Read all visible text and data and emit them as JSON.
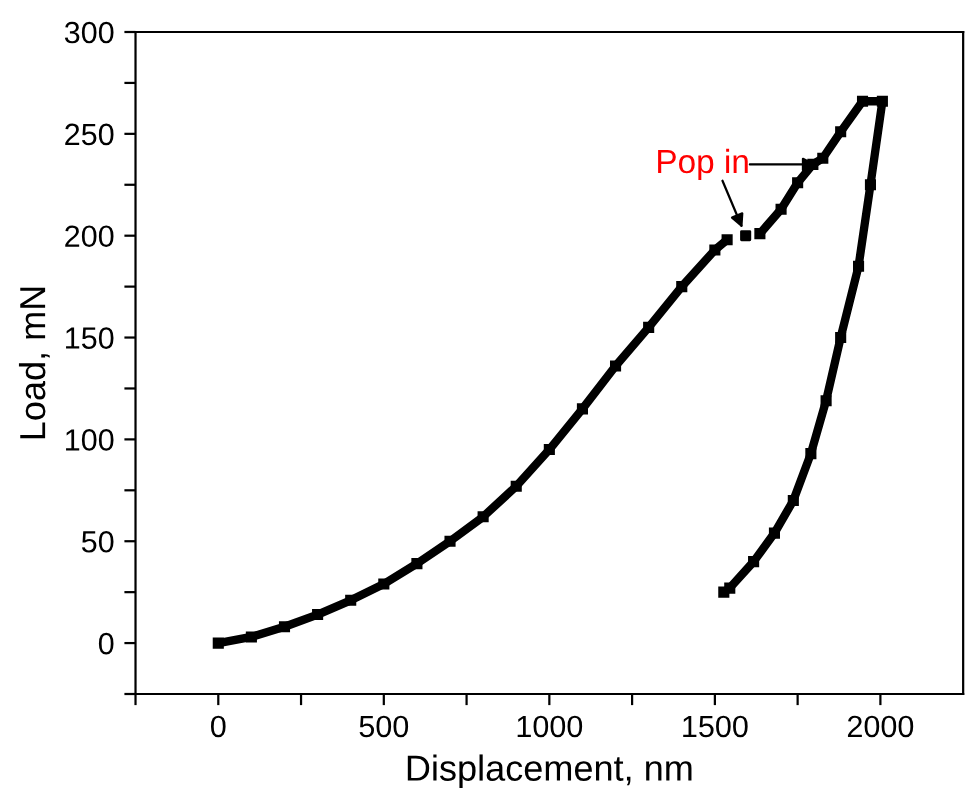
{
  "chart_data": {
    "type": "line",
    "xlabel": "Displacement, nm",
    "ylabel": "Load, mN",
    "series": [
      {
        "color": "#000000",
        "x": [
          0,
          100,
          200,
          300,
          400,
          500,
          600,
          700,
          800,
          900,
          1000,
          1100,
          1200,
          1300,
          1400,
          1500,
          1537
        ],
        "values": [
          0,
          3,
          8,
          14,
          21,
          29,
          39,
          50,
          62,
          77,
          95,
          115,
          136,
          155,
          175,
          193,
          198
        ]
      },
      {
        "color": "#000000",
        "type": "scatter",
        "x": [
          1593
        ],
        "values": [
          200
        ]
      },
      {
        "color": "#000000",
        "x": [
          1636,
          1700,
          1750,
          1796,
          1826,
          1880,
          1946,
          2006,
          1970,
          1934,
          1880,
          1836,
          1790,
          1737,
          1680,
          1617,
          1545,
          1527
        ],
        "values": [
          201,
          213,
          226,
          235,
          238,
          251,
          266,
          266,
          225,
          185,
          150,
          119,
          93,
          70,
          54,
          40,
          27,
          25
        ]
      }
    ],
    "annotations": [
      {
        "text": "Pop in",
        "x": 1593,
        "y": 200
      }
    ],
    "xlim": [
      -250,
      2250
    ],
    "xticks": [
      {
        "value": -250,
        "label": null
      },
      0,
      {
        "value": 250,
        "label": null
      },
      500,
      {
        "value": 750,
        "label": null
      },
      1000,
      {
        "value": 1250,
        "label": null
      },
      1500,
      {
        "value": 1750,
        "label": null
      },
      2000
    ],
    "ylim": [
      -25,
      300
    ],
    "yticks": [
      {
        "value": -25,
        "label": null
      },
      0,
      {
        "value": 25,
        "label": null
      },
      50,
      {
        "value": 75,
        "label": null
      },
      100,
      {
        "value": 125,
        "label": null
      },
      150,
      {
        "value": 175,
        "label": null
      },
      200,
      {
        "value": 225,
        "label": null
      },
      250,
      {
        "value": 275,
        "label": null
      },
      300
    ],
    "grid": false,
    "legend": false,
    "marker": "square",
    "line_style": "solid"
  }
}
